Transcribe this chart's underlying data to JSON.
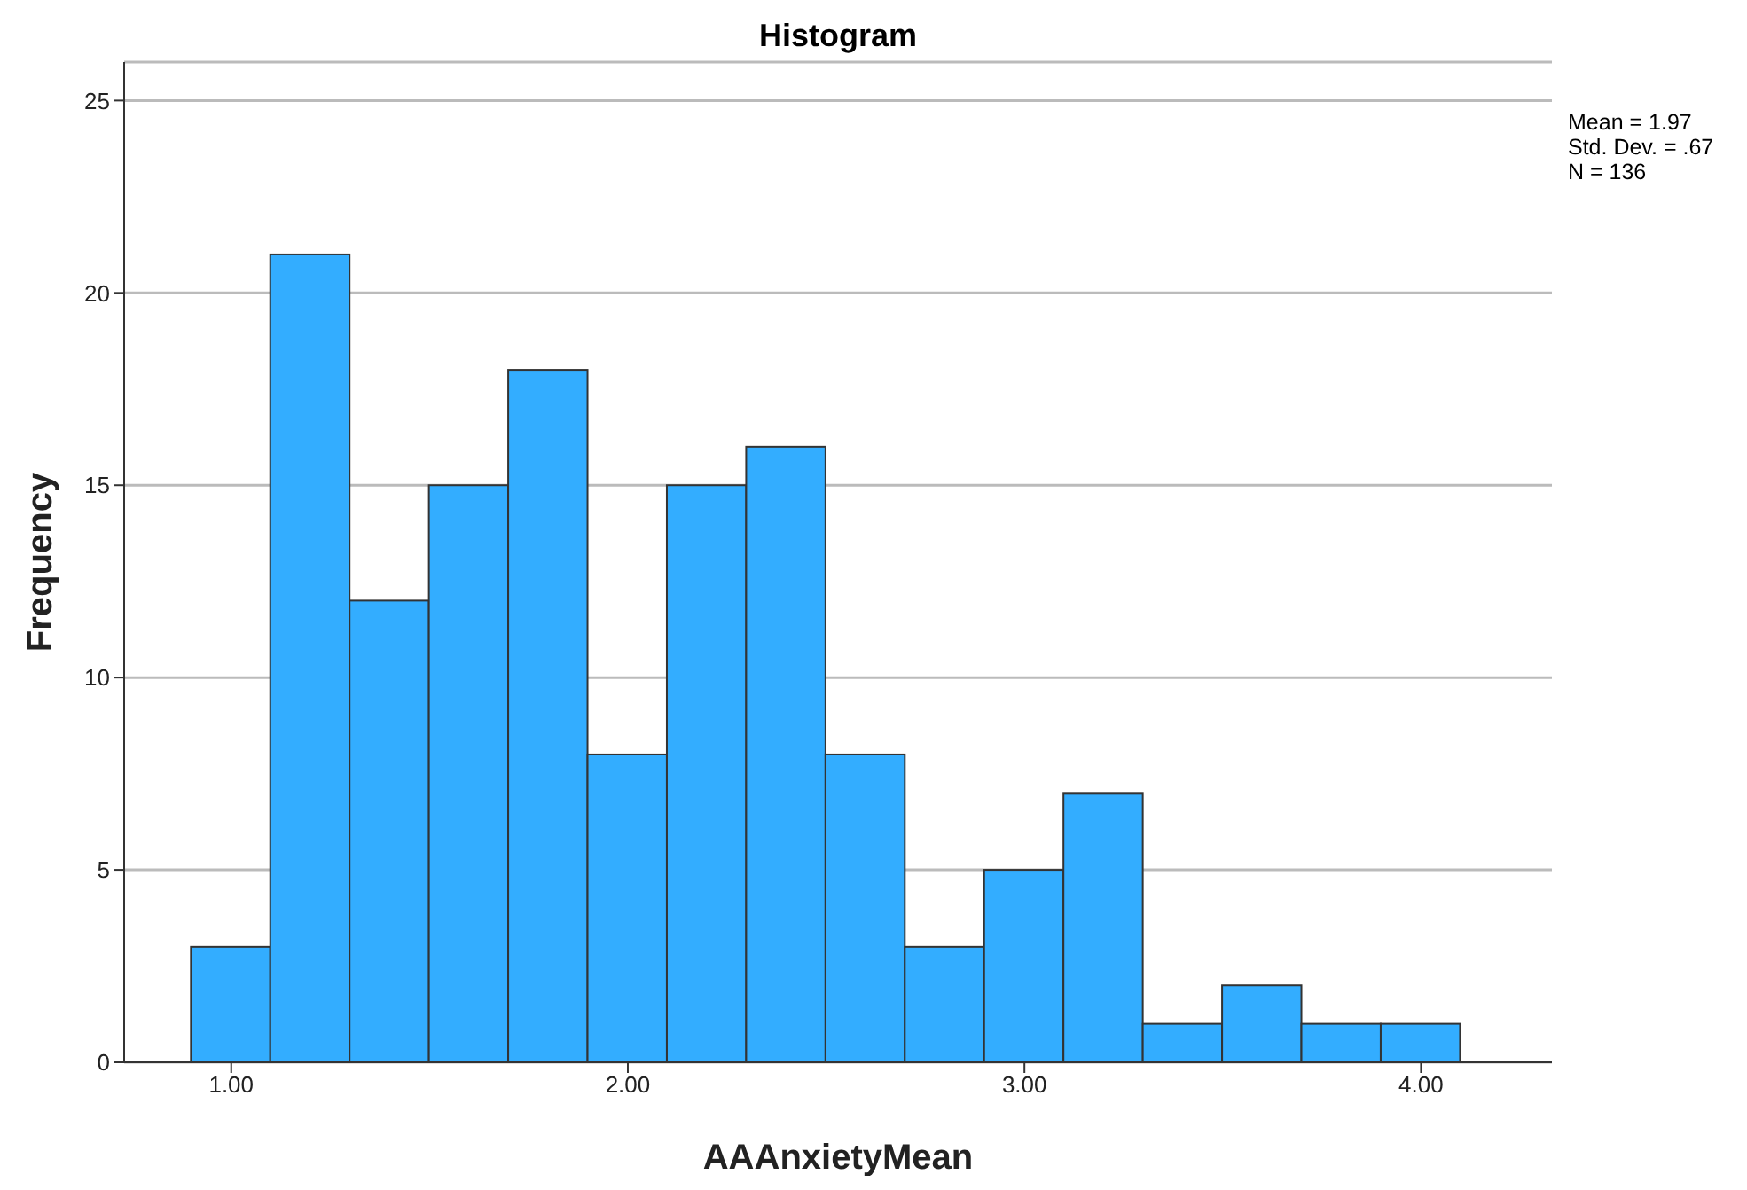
{
  "chart_data": {
    "type": "histogram",
    "title": "Histogram",
    "xlabel": "AAAnxietyMean",
    "ylabel": "Frequency",
    "bins": [
      0.9,
      1.1,
      1.3,
      1.5,
      1.7,
      1.9,
      2.1,
      2.3,
      2.5,
      2.7,
      2.9,
      3.1,
      3.3,
      3.5,
      3.7,
      3.9,
      4.1
    ],
    "values": [
      3,
      21,
      12,
      15,
      18,
      8,
      15,
      16,
      8,
      3,
      5,
      7,
      1,
      2,
      1,
      1
    ],
    "color": "#33adff",
    "xlim": [
      0.73,
      4.33
    ],
    "xticks": [
      {
        "value": 1,
        "label": "1.00"
      },
      {
        "value": 2,
        "label": "2.00"
      },
      {
        "value": 3,
        "label": "3.00"
      },
      {
        "value": 4,
        "label": "4.00"
      }
    ],
    "ylim": [
      0,
      26
    ],
    "yticks": [
      0,
      5,
      10,
      15,
      20,
      25
    ],
    "grid": "y",
    "annotations": [
      "Mean = 1.97",
      "Std. Dev. = .67",
      "N = 136"
    ]
  }
}
